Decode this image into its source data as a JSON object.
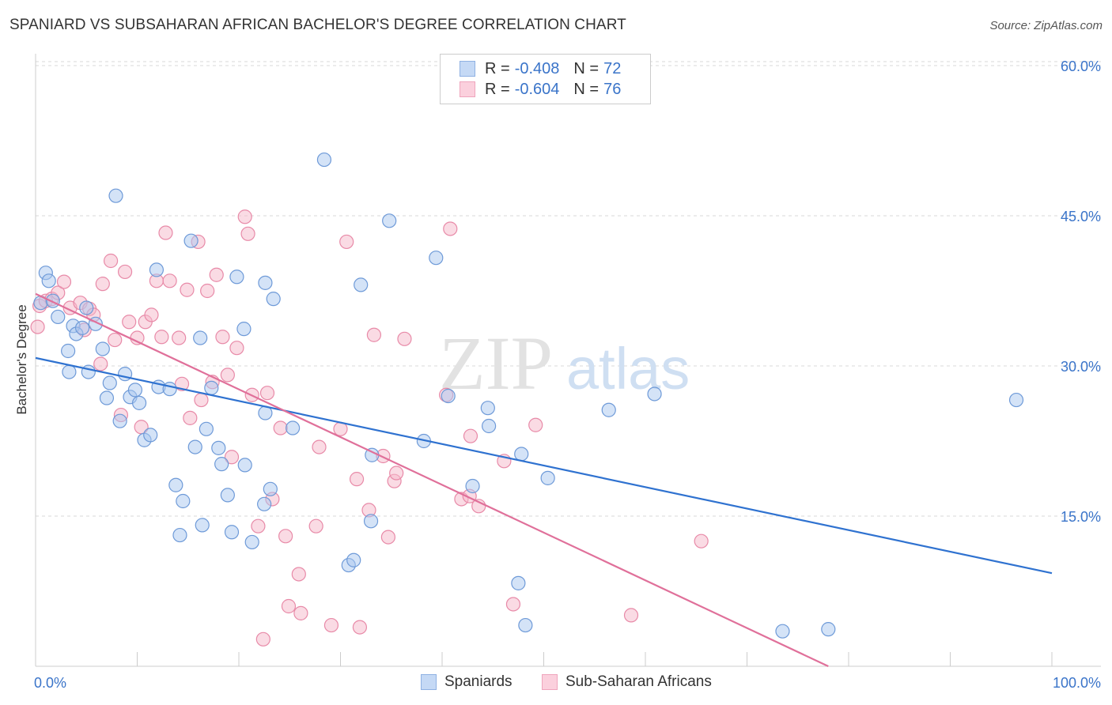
{
  "title": "SPANIARD VS SUBSAHARAN AFRICAN BACHELOR'S DEGREE CORRELATION CHART",
  "source": "Source: ZipAtlas.com",
  "watermark": {
    "zip": "ZIP",
    "atlas": "atlas"
  },
  "colors": {
    "blue_fill": "#a9c7f0",
    "blue_stroke": "#6e9ad8",
    "blue_line": "#2f72d0",
    "pink_fill": "#f5b8ca",
    "pink_stroke": "#e88aa8",
    "pink_line": "#e0709a",
    "tick_label": "#3a74c9",
    "grid": "#d8d8d8"
  },
  "legend": {
    "rows": [
      {
        "r_label": "R =",
        "r_value": "-0.408",
        "n_label": "N =",
        "n_value": "72",
        "color": "#a9c7f0"
      },
      {
        "r_label": "R =",
        "r_value": "-0.604",
        "n_label": "N =",
        "n_value": "76",
        "color": "#f5b8ca"
      }
    ]
  },
  "bottom_legend": [
    {
      "label": "Spaniards",
      "color": "#a9c7f0"
    },
    {
      "label": "Sub-Saharan Africans",
      "color": "#f5b8ca"
    }
  ],
  "chart_data": {
    "type": "scatter",
    "ylabel": "Bachelor's Degree",
    "xlabel": "",
    "xlim": [
      0,
      100
    ],
    "ylim": [
      0,
      65
    ],
    "x_tick_labels": [
      {
        "value": 0,
        "label": "0.0%"
      },
      {
        "value": 100,
        "label": "100.0%"
      }
    ],
    "y_tick_labels": [
      {
        "value": 15,
        "label": "15.0%"
      },
      {
        "value": 30,
        "label": "30.0%"
      },
      {
        "value": 45,
        "label": "45.0%"
      },
      {
        "value": 60,
        "label": "60.0%"
      }
    ],
    "grid": true,
    "series": [
      {
        "name": "Spaniards",
        "trend": {
          "x": [
            0,
            100
          ],
          "y": [
            30.8,
            9.3
          ]
        },
        "points": [
          [
            0.5,
            36.3
          ],
          [
            1.0,
            39.3
          ],
          [
            1.3,
            38.5
          ],
          [
            1.7,
            36.5
          ],
          [
            2.2,
            34.9
          ],
          [
            3.3,
            29.4
          ],
          [
            3.2,
            31.5
          ],
          [
            3.7,
            34.0
          ],
          [
            4.0,
            33.2
          ],
          [
            4.6,
            33.8
          ],
          [
            5.0,
            35.8
          ],
          [
            5.2,
            29.4
          ],
          [
            5.9,
            34.2
          ],
          [
            6.6,
            31.7
          ],
          [
            7.0,
            26.8
          ],
          [
            7.3,
            28.3
          ],
          [
            7.9,
            47.0
          ],
          [
            8.3,
            24.5
          ],
          [
            8.8,
            29.2
          ],
          [
            9.3,
            26.9
          ],
          [
            9.8,
            27.6
          ],
          [
            10.2,
            26.3
          ],
          [
            10.7,
            22.6
          ],
          [
            11.3,
            23.1
          ],
          [
            11.9,
            39.6
          ],
          [
            12.1,
            27.9
          ],
          [
            13.2,
            27.7
          ],
          [
            13.8,
            18.1
          ],
          [
            14.2,
            13.1
          ],
          [
            14.5,
            16.5
          ],
          [
            15.3,
            42.5
          ],
          [
            15.7,
            21.9
          ],
          [
            16.2,
            32.8
          ],
          [
            16.4,
            14.1
          ],
          [
            16.8,
            23.7
          ],
          [
            17.3,
            27.8
          ],
          [
            18.0,
            21.8
          ],
          [
            18.3,
            20.2
          ],
          [
            18.9,
            17.1
          ],
          [
            19.3,
            13.4
          ],
          [
            19.8,
            38.9
          ],
          [
            20.5,
            33.7
          ],
          [
            20.6,
            20.1
          ],
          [
            21.3,
            12.4
          ],
          [
            22.6,
            38.3
          ],
          [
            22.6,
            25.3
          ],
          [
            22.5,
            16.2
          ],
          [
            23.1,
            17.7
          ],
          [
            23.4,
            36.7
          ],
          [
            25.3,
            23.8
          ],
          [
            28.4,
            50.6
          ],
          [
            30.8,
            10.1
          ],
          [
            31.3,
            10.6
          ],
          [
            33.0,
            14.5
          ],
          [
            33.1,
            21.1
          ],
          [
            32.0,
            38.1
          ],
          [
            34.8,
            44.5
          ],
          [
            38.2,
            22.5
          ],
          [
            39.4,
            40.8
          ],
          [
            40.6,
            27.0
          ],
          [
            43.0,
            18.0
          ],
          [
            44.5,
            25.8
          ],
          [
            44.6,
            24.0
          ],
          [
            47.5,
            8.3
          ],
          [
            47.8,
            21.2
          ],
          [
            48.2,
            4.1
          ],
          [
            50.4,
            18.8
          ],
          [
            56.4,
            25.6
          ],
          [
            60.9,
            27.2
          ],
          [
            73.5,
            3.5
          ],
          [
            78.0,
            3.7
          ],
          [
            96.5,
            26.6
          ]
        ]
      },
      {
        "name": "Sub-Saharan Africans",
        "trend": {
          "x": [
            0,
            78
          ],
          "y": [
            37.2,
            0
          ]
        },
        "points": [
          [
            0.2,
            33.9
          ],
          [
            0.4,
            36.0
          ],
          [
            1.0,
            36.5
          ],
          [
            1.6,
            36.7
          ],
          [
            2.2,
            37.3
          ],
          [
            2.8,
            38.4
          ],
          [
            3.4,
            35.8
          ],
          [
            4.4,
            36.3
          ],
          [
            4.8,
            33.6
          ],
          [
            5.3,
            35.7
          ],
          [
            5.7,
            35.1
          ],
          [
            6.4,
            30.2
          ],
          [
            6.6,
            38.2
          ],
          [
            7.4,
            40.5
          ],
          [
            7.8,
            32.6
          ],
          [
            8.4,
            25.1
          ],
          [
            8.8,
            39.4
          ],
          [
            9.2,
            34.4
          ],
          [
            10.0,
            32.8
          ],
          [
            10.4,
            23.9
          ],
          [
            10.8,
            34.4
          ],
          [
            11.4,
            35.1
          ],
          [
            11.9,
            38.5
          ],
          [
            12.4,
            32.9
          ],
          [
            12.8,
            43.3
          ],
          [
            13.2,
            38.5
          ],
          [
            14.1,
            32.8
          ],
          [
            14.4,
            28.2
          ],
          [
            14.9,
            37.6
          ],
          [
            15.2,
            24.8
          ],
          [
            16.0,
            42.4
          ],
          [
            16.3,
            26.6
          ],
          [
            16.9,
            37.5
          ],
          [
            17.4,
            28.4
          ],
          [
            17.8,
            39.1
          ],
          [
            18.4,
            32.9
          ],
          [
            18.9,
            29.1
          ],
          [
            19.3,
            20.9
          ],
          [
            19.8,
            31.8
          ],
          [
            20.6,
            44.9
          ],
          [
            20.9,
            43.2
          ],
          [
            21.3,
            27.1
          ],
          [
            21.9,
            14.0
          ],
          [
            22.4,
            2.7
          ],
          [
            22.8,
            27.3
          ],
          [
            23.3,
            16.7
          ],
          [
            24.1,
            23.8
          ],
          [
            24.6,
            13.0
          ],
          [
            24.9,
            6.0
          ],
          [
            25.9,
            9.2
          ],
          [
            26.1,
            5.3
          ],
          [
            27.6,
            14.0
          ],
          [
            27.9,
            21.9
          ],
          [
            29.1,
            4.1
          ],
          [
            30.0,
            23.7
          ],
          [
            30.6,
            42.4
          ],
          [
            31.6,
            18.7
          ],
          [
            31.9,
            3.9
          ],
          [
            32.8,
            15.6
          ],
          [
            33.3,
            33.1
          ],
          [
            34.2,
            21.0
          ],
          [
            34.7,
            12.9
          ],
          [
            35.3,
            18.5
          ],
          [
            35.5,
            19.3
          ],
          [
            36.3,
            32.7
          ],
          [
            40.4,
            27.1
          ],
          [
            40.8,
            43.7
          ],
          [
            41.9,
            16.7
          ],
          [
            42.7,
            17.0
          ],
          [
            42.8,
            23.0
          ],
          [
            43.6,
            16.0
          ],
          [
            46.1,
            20.5
          ],
          [
            47.0,
            6.2
          ],
          [
            49.2,
            24.1
          ],
          [
            58.6,
            5.1
          ],
          [
            65.5,
            12.5
          ]
        ]
      }
    ]
  }
}
